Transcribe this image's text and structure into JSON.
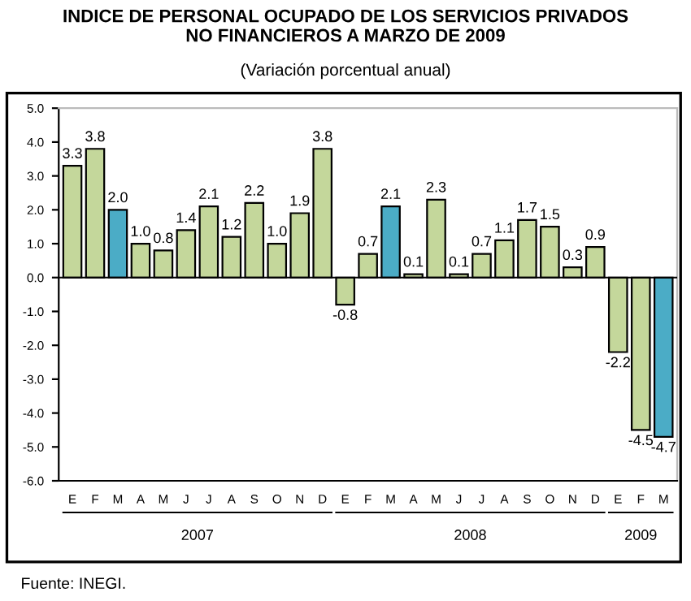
{
  "chart_data": {
    "type": "bar",
    "title": "INDICE DE PERSONAL OCUPADO DE LOS SERVICIOS PRIVADOS\nNO FINANCIEROS A MARZO DE 2009",
    "subtitle": "(Variación porcentual anual)",
    "categories": [
      "E",
      "F",
      "M",
      "A",
      "M",
      "J",
      "J",
      "A",
      "S",
      "O",
      "N",
      "D",
      "E",
      "F",
      "M",
      "A",
      "M",
      "J",
      "J",
      "A",
      "S",
      "O",
      "N",
      "D",
      "E",
      "F",
      "M"
    ],
    "values": [
      3.3,
      3.8,
      2.0,
      1.0,
      0.8,
      1.4,
      2.1,
      1.2,
      2.2,
      1.0,
      1.9,
      3.8,
      -0.8,
      0.7,
      2.1,
      0.1,
      2.3,
      0.1,
      0.7,
      1.1,
      1.7,
      1.5,
      0.3,
      0.9,
      -2.2,
      -4.5,
      -4.7
    ],
    "colors": [
      "#c4d79b",
      "#c4d79b",
      "#4bacc6",
      "#c4d79b",
      "#c4d79b",
      "#c4d79b",
      "#c4d79b",
      "#c4d79b",
      "#c4d79b",
      "#c4d79b",
      "#c4d79b",
      "#c4d79b",
      "#c4d79b",
      "#c4d79b",
      "#4bacc6",
      "#c4d79b",
      "#c4d79b",
      "#c4d79b",
      "#c4d79b",
      "#c4d79b",
      "#c4d79b",
      "#c4d79b",
      "#c4d79b",
      "#c4d79b",
      "#c4d79b",
      "#c4d79b",
      "#4bacc6"
    ],
    "ylim": [
      -6.0,
      5.0
    ],
    "yticks": [
      {
        "value": -6,
        "label": "-6.0"
      },
      {
        "value": -5,
        "label": "-5.0"
      },
      {
        "value": -4,
        "label": "-4.0"
      },
      {
        "value": -3,
        "label": "-3.0"
      },
      {
        "value": -2,
        "label": "-2.0"
      },
      {
        "value": -1,
        "label": "-1.0"
      },
      {
        "value": 0,
        "label": "0.0"
      },
      {
        "value": 1,
        "label": "1.0"
      },
      {
        "value": 2,
        "label": "2.0"
      },
      {
        "value": 3,
        "label": "3.0"
      },
      {
        "value": 4,
        "label": "4.0"
      },
      {
        "value": 5,
        "label": "5.0"
      }
    ],
    "value_labels": [
      "3.3",
      "3.8",
      "2.0",
      "1.0",
      "0.8",
      "1.4",
      "2.1",
      "1.2",
      "2.2",
      "1.0",
      "1.9",
      "3.8",
      "-0.8",
      "0.7",
      "2.1",
      "0.1",
      "2.3",
      "0.1",
      "0.7",
      "1.1",
      "1.7",
      "1.5",
      "0.3",
      "0.9",
      "-2.2",
      "-4.5",
      "-4.7"
    ],
    "annotations": [
      "2007",
      "2008",
      "2009",
      "Fuente: INEGI."
    ]
  }
}
